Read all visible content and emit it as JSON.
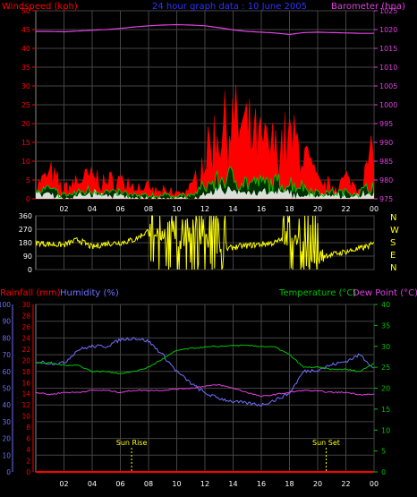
{
  "chart_data": [
    {
      "id": "wind",
      "type": "area",
      "title": "24 hour graph data : 10 June 2005",
      "left_label": "Windspeed (kph)",
      "right_label": "Barometer (hpa)",
      "x_ticks": [
        "02",
        "04",
        "06",
        "08",
        "10",
        "12",
        "14",
        "16",
        "18",
        "20",
        "22",
        "00"
      ],
      "y_left_ticks": [
        0,
        5,
        10,
        15,
        20,
        25,
        30,
        35,
        40,
        45,
        50
      ],
      "y_left_range": [
        0,
        50
      ],
      "y_right_ticks": [
        975,
        980,
        985,
        990,
        995,
        1000,
        1005,
        1010,
        1015,
        1020,
        1025
      ],
      "y_right_range": [
        975,
        1025
      ],
      "colors": {
        "gust": "#ff0000",
        "average": "#00c000",
        "lull": "#ffffff",
        "barometer": "#e040e0",
        "bg": "#000000"
      },
      "x_hours": [
        0,
        1,
        2,
        3,
        4,
        5,
        6,
        7,
        8,
        9,
        10,
        11,
        12,
        13,
        14,
        15,
        16,
        17,
        18,
        19,
        20,
        21,
        22,
        23,
        24
      ],
      "gust": [
        4,
        8,
        3,
        6,
        7,
        5,
        6,
        4,
        3,
        2,
        2,
        3,
        13,
        22,
        24,
        21,
        17,
        16,
        19,
        15,
        5,
        4,
        6,
        4,
        16
      ],
      "average": [
        2,
        3,
        1,
        2,
        3,
        2,
        2,
        1,
        1,
        1,
        1,
        1,
        4,
        6,
        7,
        5,
        5,
        5,
        5,
        4,
        2,
        2,
        2,
        2,
        5
      ],
      "lull": [
        1,
        2,
        0,
        1,
        2,
        1,
        1,
        0,
        0,
        0,
        0,
        0,
        1,
        3,
        3,
        2,
        2,
        2,
        2,
        1,
        1,
        1,
        1,
        1,
        2
      ],
      "barometer": [
        1019.5,
        1019.5,
        1019.4,
        1019.6,
        1019.8,
        1020,
        1020.3,
        1020.7,
        1021,
        1021.2,
        1021.3,
        1021.2,
        1021,
        1020.5,
        1019.9,
        1019.5,
        1019.3,
        1019.1,
        1018.7,
        1019.2,
        1019.3,
        1019.2,
        1019.1,
        1019,
        1019
      ]
    },
    {
      "id": "direction",
      "type": "line",
      "left_ticks": [
        0,
        90,
        180,
        270,
        360
      ],
      "right_ticks": [
        "N",
        "W",
        "S",
        "E",
        "N"
      ],
      "x_ticks": [
        "02",
        "04",
        "06",
        "08",
        "10",
        "12",
        "14",
        "16",
        "18",
        "20",
        "22",
        "00"
      ],
      "colors": {
        "line": "#ffff00",
        "axis_right": "#ffff00"
      },
      "x_hours": [
        0,
        1,
        2,
        3,
        4,
        5,
        6,
        7,
        8,
        9,
        10,
        11,
        12,
        13,
        14,
        15,
        16,
        17,
        18,
        19,
        20,
        21,
        22,
        23,
        24
      ],
      "values": [
        180,
        170,
        165,
        200,
        150,
        175,
        180,
        200,
        260,
        240,
        180,
        230,
        200,
        120,
        150,
        160,
        170,
        180,
        230,
        150,
        90,
        100,
        120,
        140,
        170
      ]
    },
    {
      "id": "temp",
      "type": "line",
      "left_label_1": "Rainfall (mm)",
      "left_label_2": "Humidity (%)",
      "right_label_1": "Temperature (°C)",
      "right_label_2": "Dew Point (°C)",
      "x_ticks": [
        "02",
        "04",
        "06",
        "08",
        "10",
        "12",
        "14",
        "16",
        "18",
        "20",
        "22",
        "00"
      ],
      "humidity_ticks": [
        0,
        10,
        20,
        30,
        40,
        50,
        60,
        70,
        80,
        90,
        100
      ],
      "rain_ticks": [
        0,
        2,
        4,
        6,
        8,
        10,
        12,
        14,
        16,
        18,
        20,
        22,
        24,
        26,
        28,
        30
      ],
      "temp_ticks": [
        0,
        5,
        10,
        15,
        20,
        25,
        30,
        35,
        40
      ],
      "humidity_range": [
        0,
        100
      ],
      "temp_range": [
        0,
        40
      ],
      "rain_range": [
        0,
        30
      ],
      "sun_rise": "Sun Rise",
      "sun_set": "Sun Set",
      "sun_rise_hour": 6.8,
      "sun_set_hour": 20.6,
      "colors": {
        "humidity": "#7070ff",
        "temperature": "#00c000",
        "dewpoint": "#e040e0",
        "rainfall": "#ff0000",
        "sun": "#ffff00"
      },
      "x_hours": [
        0,
        1,
        2,
        3,
        4,
        5,
        6,
        7,
        8,
        9,
        10,
        11,
        12,
        13,
        14,
        15,
        16,
        17,
        18,
        19,
        20,
        21,
        22,
        23,
        24
      ],
      "humidity": [
        66,
        65,
        65,
        73,
        75,
        75,
        79,
        80,
        78,
        70,
        60,
        53,
        47,
        44,
        42,
        41,
        40,
        43,
        47,
        60,
        61,
        64,
        66,
        70,
        62
      ],
      "temperature": [
        26,
        26,
        25.5,
        25.5,
        24,
        24,
        23.5,
        24,
        25,
        27,
        29,
        29.5,
        29.8,
        30,
        30.2,
        30.2,
        30,
        29.8,
        28,
        25,
        25,
        24.5,
        24.5,
        24,
        26
      ],
      "dewpoint": [
        19,
        18.5,
        19,
        19,
        19.5,
        19.5,
        19,
        19.5,
        19.5,
        19.5,
        19.8,
        20,
        20.5,
        20.8,
        20,
        19,
        18,
        18.5,
        19,
        19.5,
        19.3,
        19,
        19,
        18.5,
        18.5
      ],
      "rainfall": [
        0,
        0,
        0,
        0,
        0,
        0,
        0,
        0,
        0,
        0,
        0,
        0,
        0,
        0,
        0,
        0,
        0,
        0,
        0,
        0,
        0,
        0,
        0,
        0,
        0
      ]
    }
  ]
}
